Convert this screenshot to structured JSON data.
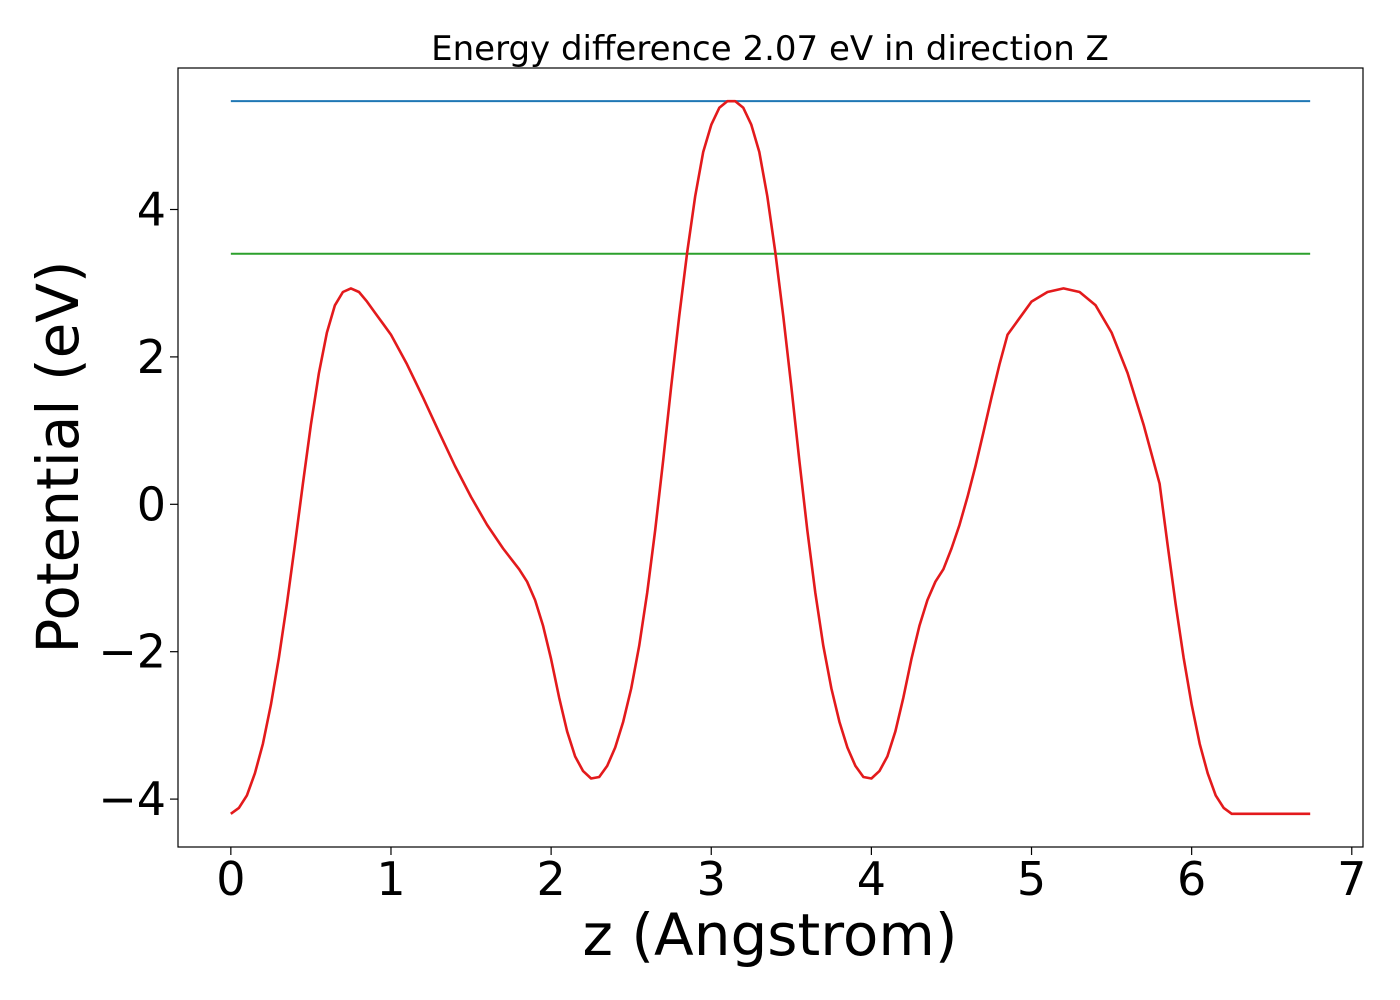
{
  "chart_data": {
    "type": "line",
    "title": "Energy difference 2.07 eV in direction Z",
    "xlabel": "z (Angstrom)",
    "ylabel": "Potential (eV)",
    "xlim": [
      -0.33,
      7.07
    ],
    "ylim": [
      -4.65,
      5.92
    ],
    "xticks": [
      0,
      1,
      2,
      3,
      4,
      5,
      6,
      7
    ],
    "yticks": [
      -4,
      -2,
      0,
      2,
      4
    ],
    "xtick_labels": [
      "0",
      "1",
      "2",
      "3",
      "4",
      "5",
      "6",
      "7"
    ],
    "ytick_labels": [
      "−4",
      "−2",
      "0",
      "2",
      "4"
    ],
    "grid": false,
    "legend": "none",
    "hlines": [
      {
        "y": 5.47,
        "x_start": 0,
        "x_end": 6.74,
        "color": "#1f77b4"
      },
      {
        "y": 3.4,
        "x_start": 0,
        "x_end": 6.74,
        "color": "#2ca02c"
      }
    ],
    "series": [
      {
        "color": "#e31a1c",
        "x": [
          0.0,
          0.05,
          0.1,
          0.15,
          0.2,
          0.25,
          0.3,
          0.35,
          0.4,
          0.45,
          0.5,
          0.55,
          0.6,
          0.65,
          0.7,
          0.75,
          0.8,
          0.85,
          0.9,
          0.95,
          1.0,
          1.1,
          1.2,
          1.3,
          1.4,
          1.5,
          1.6,
          1.7,
          1.8,
          1.85,
          1.9,
          1.95,
          2.0,
          2.05,
          2.1,
          2.15,
          2.2,
          2.25,
          2.3,
          2.35,
          2.4,
          2.45,
          2.5,
          2.55,
          2.6,
          2.65,
          2.7,
          2.75,
          2.8,
          2.85,
          2.9,
          2.95,
          3.0,
          3.05,
          3.1,
          3.15,
          3.2,
          3.25,
          3.3,
          3.35,
          3.4,
          3.45,
          3.5,
          3.55,
          3.6,
          3.65,
          3.7,
          3.75,
          3.8,
          3.85,
          3.9,
          3.95,
          4.0,
          4.05,
          4.1,
          4.15,
          4.2,
          4.25,
          4.3,
          4.35,
          4.4,
          4.45,
          4.5,
          4.55,
          4.6,
          4.65,
          4.7,
          4.75,
          4.8,
          4.85,
          4.9,
          4.95,
          5.0,
          5.1,
          5.2,
          5.3,
          5.4,
          5.5,
          5.6,
          5.7,
          5.8,
          5.85,
          5.9,
          5.95,
          6.0,
          6.05,
          6.1,
          6.15,
          6.2,
          6.25,
          6.3,
          6.35,
          6.4,
          6.45,
          6.5,
          6.55,
          6.6,
          6.65,
          6.7,
          6.74
        ],
        "y": [
          -4.2,
          -4.12,
          -3.95,
          -3.65,
          -3.25,
          -2.72,
          -2.08,
          -1.35,
          -0.55,
          0.28,
          1.08,
          1.78,
          2.33,
          2.7,
          2.88,
          2.93,
          2.88,
          2.75,
          2.6,
          2.45,
          2.3,
          1.9,
          1.45,
          0.98,
          0.52,
          0.1,
          -0.28,
          -0.6,
          -0.88,
          -1.05,
          -1.3,
          -1.65,
          -2.1,
          -2.62,
          -3.08,
          -3.42,
          -3.62,
          -3.72,
          -3.7,
          -3.55,
          -3.3,
          -2.95,
          -2.5,
          -1.92,
          -1.2,
          -0.35,
          0.6,
          1.6,
          2.55,
          3.42,
          4.18,
          4.78,
          5.15,
          5.38,
          5.47,
          5.47,
          5.38,
          5.15,
          4.78,
          4.18,
          3.42,
          2.55,
          1.6,
          0.6,
          -0.35,
          -1.2,
          -1.92,
          -2.5,
          -2.95,
          -3.3,
          -3.55,
          -3.7,
          -3.72,
          -3.62,
          -3.42,
          -3.08,
          -2.62,
          -2.1,
          -1.65,
          -1.3,
          -1.05,
          -0.88,
          -0.6,
          -0.28,
          0.1,
          0.52,
          0.98,
          1.45,
          1.9,
          2.3,
          2.45,
          2.6,
          2.75,
          2.88,
          2.93,
          2.88,
          2.7,
          2.33,
          1.78,
          1.08,
          0.28,
          -0.55,
          -1.35,
          -2.08,
          -2.72,
          -3.25,
          -3.65,
          -3.95,
          -4.12,
          -4.2,
          -4.2,
          -4.2,
          -4.2,
          -4.2,
          -4.2,
          -4.2,
          -4.2,
          -4.2,
          -4.2,
          -4.2
        ]
      }
    ]
  }
}
